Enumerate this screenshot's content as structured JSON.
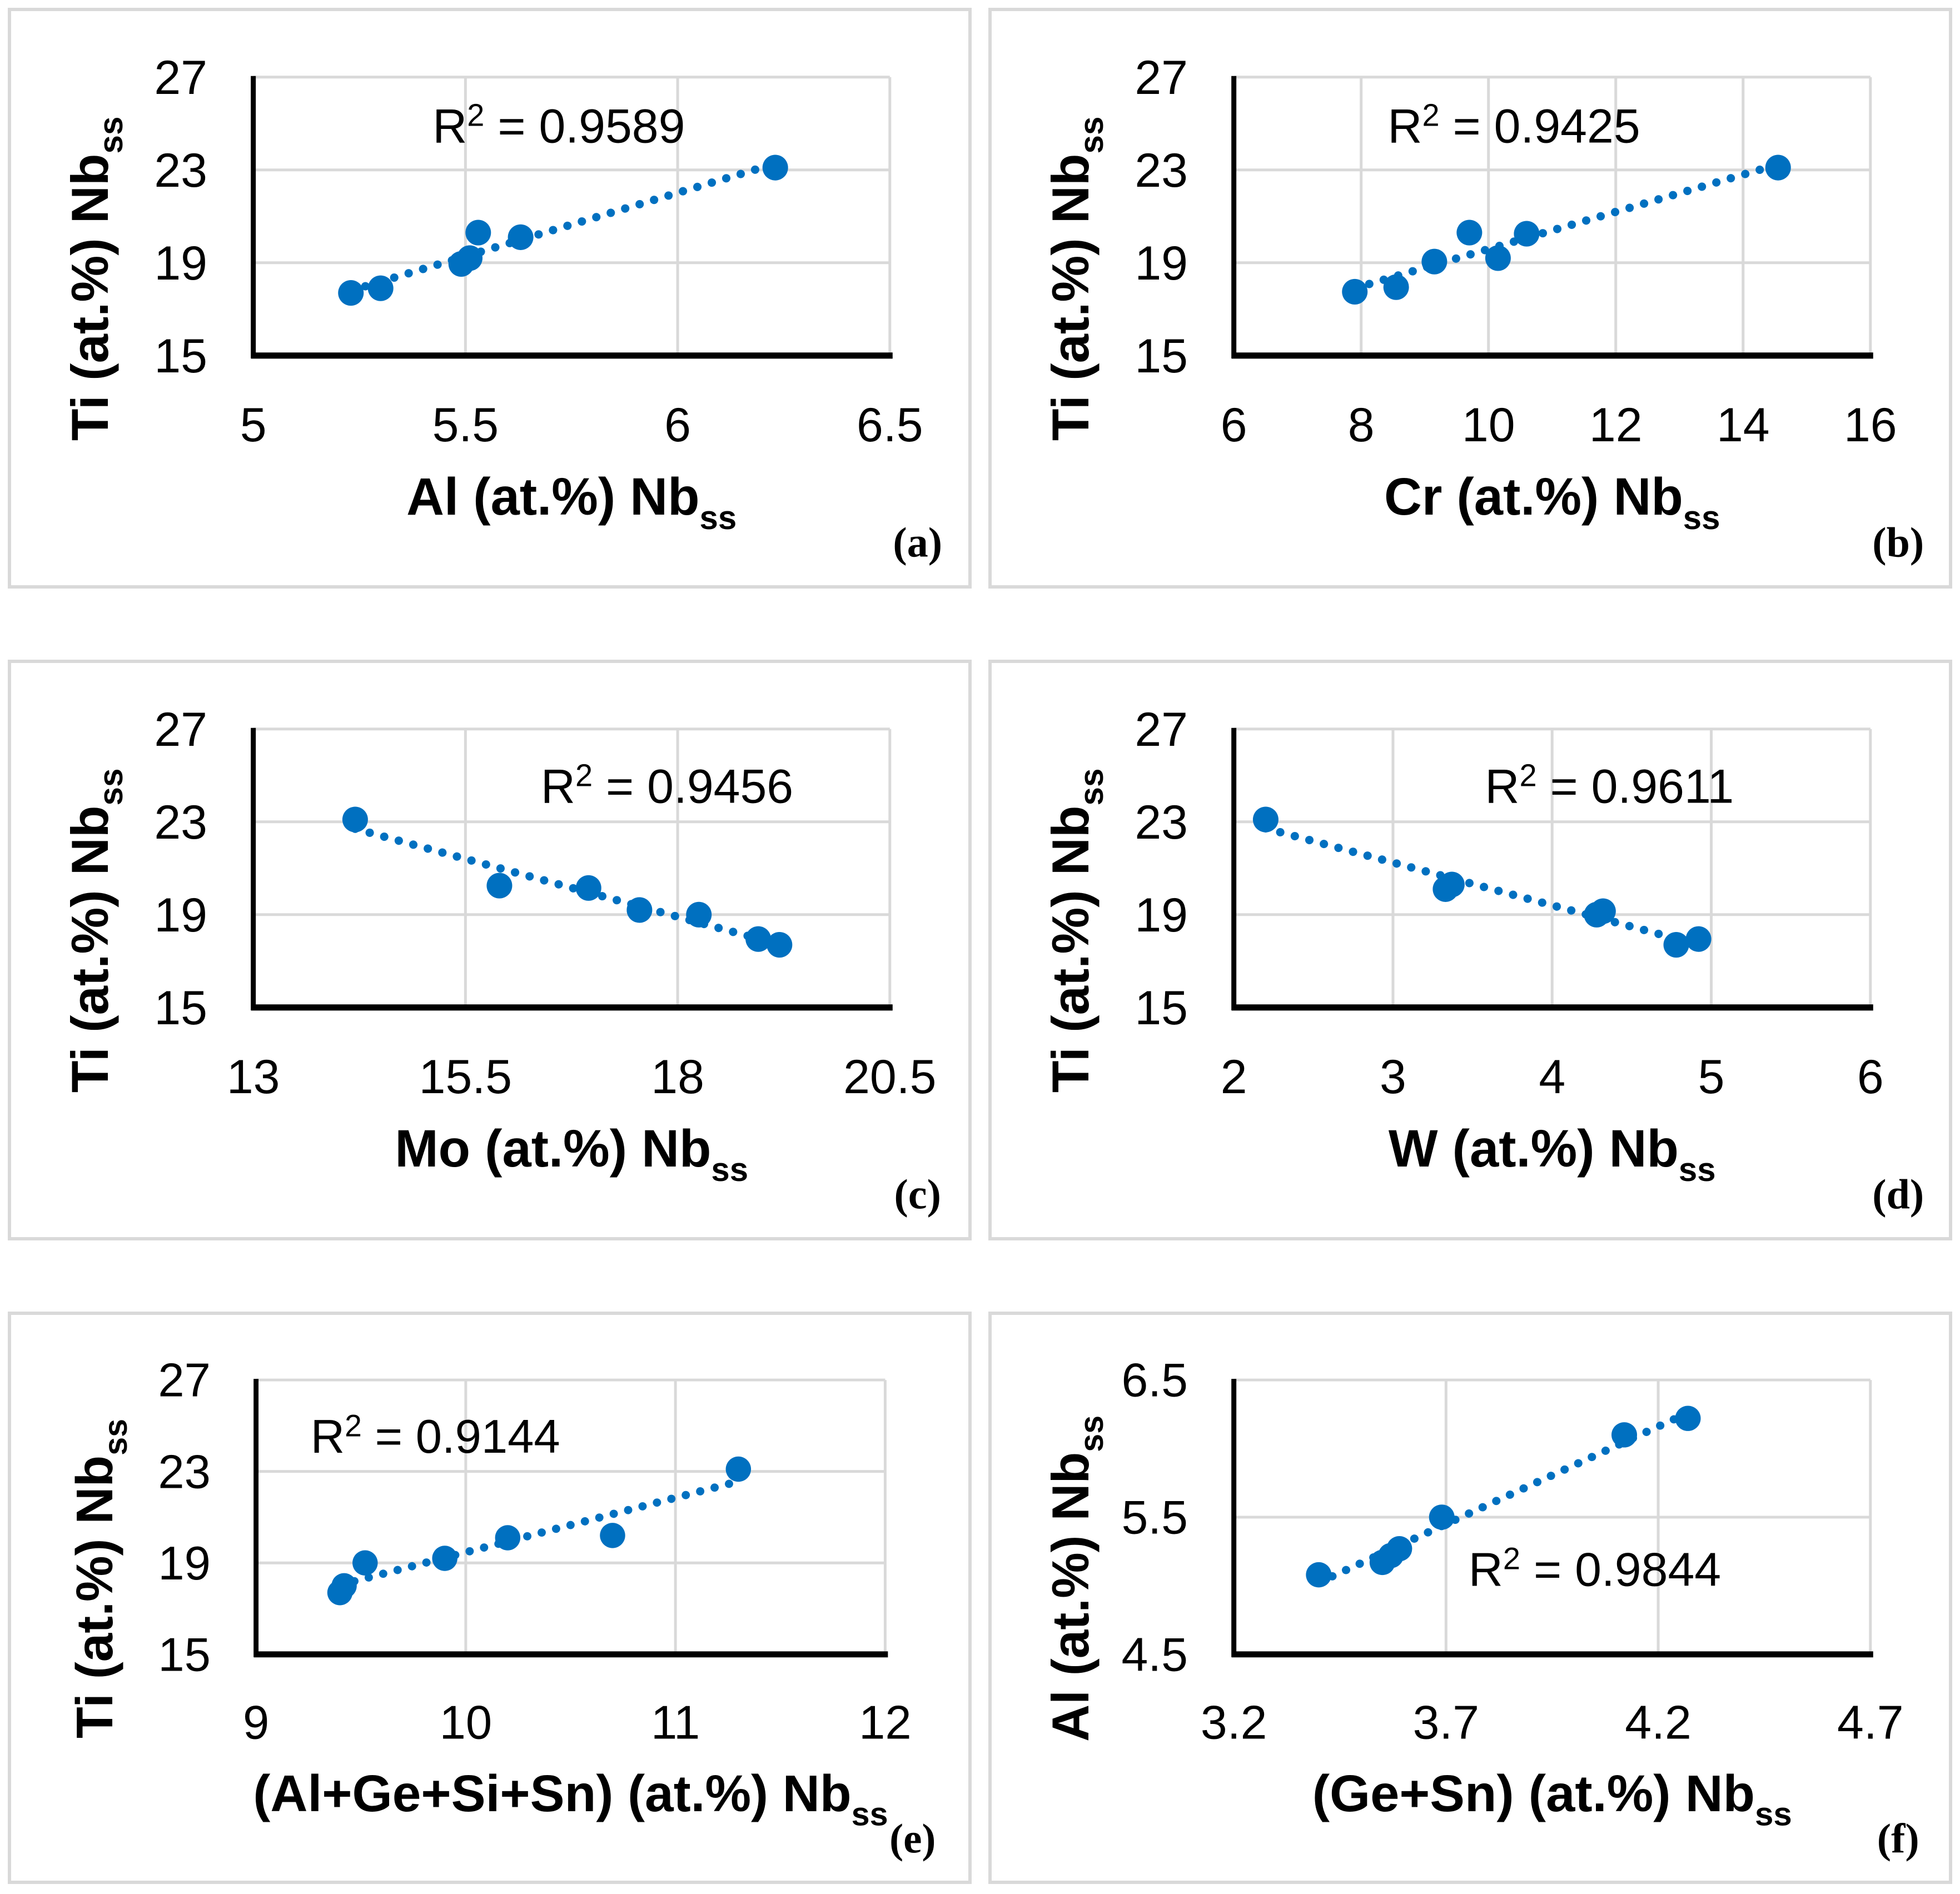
{
  "figure": {
    "background": "#ffffff",
    "panel_border_color": "#d9d9d9",
    "gridline_color": "#d9d9d9",
    "axis_color": "#000000",
    "text_color": "#000000",
    "marker_color": "#0070c0",
    "trendline_color": "#0070c0",
    "trendline_style": "dotted"
  },
  "chart_data": [
    {
      "type": "scatter",
      "panel_label": "(a)",
      "r2_label": "R² = 0.9589",
      "r2_pos": {
        "x": 0.48,
        "y": 0.175
      },
      "xlabel": {
        "text": "Al (at.%) Nb",
        "sub": "ss"
      },
      "ylabel": {
        "text": "Ti (at.%) Nb",
        "sub": "ss"
      },
      "xlim": [
        5,
        6.5
      ],
      "ylim": [
        15,
        27
      ],
      "xticks": {
        "values": [
          5,
          5.5,
          6,
          6.5
        ],
        "labels": [
          "5",
          "5.5",
          "6",
          "6.5"
        ]
      },
      "yticks": {
        "values": [
          15,
          19,
          23,
          27
        ],
        "labels": [
          "15",
          "19",
          "23",
          "27"
        ]
      },
      "points": [
        [
          5.23,
          17.7
        ],
        [
          5.3,
          17.9
        ],
        [
          5.49,
          18.95
        ],
        [
          5.51,
          19.2
        ],
        [
          5.53,
          20.3
        ],
        [
          5.63,
          20.1
        ],
        [
          6.23,
          23.1
        ]
      ],
      "trendline": true
    },
    {
      "type": "scatter",
      "panel_label": "(b)",
      "r2_label": "R² = 0.9425",
      "r2_pos": {
        "x": 0.44,
        "y": 0.175
      },
      "xlabel": {
        "text": "Cr (at.%) Nb",
        "sub": "ss"
      },
      "ylabel": {
        "text": "Ti (at.%) Nb",
        "sub": "ss"
      },
      "xlim": [
        6,
        16
      ],
      "ylim": [
        15,
        27
      ],
      "xticks": {
        "values": [
          6,
          8,
          10,
          12,
          14,
          16
        ],
        "labels": [
          "6",
          "8",
          "10",
          "12",
          "14",
          "16"
        ]
      },
      "yticks": {
        "values": [
          15,
          19,
          23,
          27
        ],
        "labels": [
          "15",
          "19",
          "23",
          "27"
        ]
      },
      "points": [
        [
          7.9,
          17.75
        ],
        [
          8.55,
          17.95
        ],
        [
          9.15,
          19.05
        ],
        [
          9.7,
          20.3
        ],
        [
          10.15,
          19.2
        ],
        [
          10.6,
          20.25
        ],
        [
          14.55,
          23.1
        ]
      ],
      "trendline": true
    },
    {
      "type": "scatter",
      "panel_label": "(c)",
      "r2_label": "R² = 0.9456",
      "r2_pos": {
        "x": 0.65,
        "y": 0.205
      },
      "xlabel": {
        "text": "Mo (at.%) Nb",
        "sub": "ss"
      },
      "ylabel": {
        "text": "Ti (at.%) Nb",
        "sub": "ss"
      },
      "xlim": [
        13,
        20.5
      ],
      "ylim": [
        15,
        27
      ],
      "xticks": {
        "values": [
          13,
          15.5,
          18,
          20.5
        ],
        "labels": [
          "13",
          "15.5",
          "18",
          "20.5"
        ]
      },
      "yticks": {
        "values": [
          15,
          19,
          23,
          27
        ],
        "labels": [
          "15",
          "19",
          "23",
          "27"
        ]
      },
      "points": [
        [
          14.2,
          23.1
        ],
        [
          15.9,
          20.25
        ],
        [
          16.95,
          20.15
        ],
        [
          17.55,
          19.2
        ],
        [
          18.25,
          19.0
        ],
        [
          18.95,
          17.95
        ],
        [
          19.2,
          17.7
        ]
      ],
      "trendline": true
    },
    {
      "type": "scatter",
      "panel_label": "(d)",
      "r2_label": "R² = 0.9611",
      "r2_pos": {
        "x": 0.59,
        "y": 0.205
      },
      "xlabel": {
        "text": "W (at.%) Nb",
        "sub": "ss"
      },
      "ylabel": {
        "text": "Ti (at.%) Nb",
        "sub": "ss"
      },
      "xlim": [
        2,
        6
      ],
      "ylim": [
        15,
        27
      ],
      "xticks": {
        "values": [
          2,
          3,
          4,
          5,
          6
        ],
        "labels": [
          "2",
          "3",
          "4",
          "5",
          "6"
        ]
      },
      "yticks": {
        "values": [
          15,
          19,
          23,
          27
        ],
        "labels": [
          "15",
          "19",
          "23",
          "27"
        ]
      },
      "points": [
        [
          2.2,
          23.1
        ],
        [
          3.33,
          20.1
        ],
        [
          3.37,
          20.3
        ],
        [
          4.28,
          19.0
        ],
        [
          4.32,
          19.15
        ],
        [
          4.78,
          17.7
        ],
        [
          4.92,
          17.95
        ]
      ],
      "trendline": true
    },
    {
      "type": "scatter",
      "panel_label": "(e)",
      "r2_label": "R² = 0.9144",
      "r2_pos": {
        "x": 0.285,
        "y": 0.205
      },
      "xlabel": {
        "text": "(Al+Ge+Si+Sn) (at.%) Nb",
        "sub": "ss"
      },
      "ylabel": {
        "text": "Ti (at.%) Nb",
        "sub": "ss"
      },
      "xlim": [
        9,
        12
      ],
      "ylim": [
        15,
        27
      ],
      "xticks": {
        "values": [
          9,
          10,
          11,
          12
        ],
        "labels": [
          "9",
          "10",
          "11",
          "12"
        ]
      },
      "yticks": {
        "values": [
          15,
          19,
          23,
          27
        ],
        "labels": [
          "15",
          "19",
          "23",
          "27"
        ]
      },
      "points": [
        [
          9.4,
          17.7
        ],
        [
          9.42,
          18.0
        ],
        [
          9.52,
          19.0
        ],
        [
          9.9,
          19.2
        ],
        [
          10.2,
          20.1
        ],
        [
          10.7,
          20.2
        ],
        [
          11.3,
          23.1
        ]
      ],
      "trendline": true
    },
    {
      "type": "scatter",
      "panel_label": "(f)",
      "r2_label": "R² = 0.9844",
      "r2_pos": {
        "x": 0.567,
        "y": 0.69
      },
      "xlabel": {
        "text": "(Ge+Sn) (at.%) Nb",
        "sub": "ss"
      },
      "ylabel": {
        "text": "Al (at.%) Nb",
        "sub": "ss"
      },
      "xlim": [
        3.2,
        4.7
      ],
      "ylim": [
        4.5,
        6.5
      ],
      "xticks": {
        "values": [
          3.2,
          3.7,
          4.2,
          4.7
        ],
        "labels": [
          "3.2",
          "3.7",
          "4.2",
          "4.7"
        ]
      },
      "yticks": {
        "values": [
          4.5,
          5.5,
          6.5
        ],
        "labels": [
          "4.5",
          "5.5",
          "6.5"
        ]
      },
      "points": [
        [
          3.4,
          5.08
        ],
        [
          3.55,
          5.17
        ],
        [
          3.57,
          5.22
        ],
        [
          3.59,
          5.27
        ],
        [
          3.69,
          5.5
        ],
        [
          4.12,
          6.1
        ],
        [
          4.27,
          6.22
        ]
      ],
      "trendline": true
    }
  ]
}
